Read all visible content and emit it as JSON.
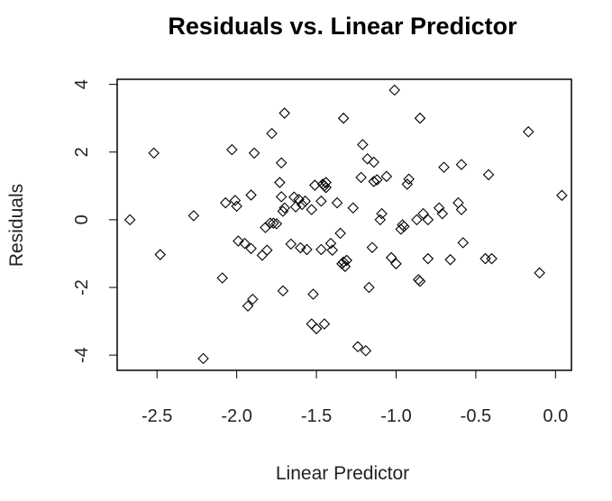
{
  "chart_data": {
    "type": "scatter",
    "title": "Residuals vs. Linear Predictor",
    "xlabel": "Linear Predictor",
    "ylabel": "Residuals",
    "xlim": [
      -2.75,
      0.1
    ],
    "ylim": [
      -4.45,
      4.15
    ],
    "xticks": [
      -2.5,
      -2.0,
      -1.5,
      -1.0,
      -0.5,
      0.0
    ],
    "xtick_labels": [
      "-2.5",
      "-2.0",
      "-1.5",
      "-1.0",
      "-0.5",
      "0.0"
    ],
    "yticks": [
      -4,
      -2,
      0,
      2,
      4
    ],
    "ytick_labels": [
      "-4",
      "-2",
      "0",
      "2",
      "4"
    ],
    "marker": "open-circle",
    "grid": false,
    "points": [
      [
        -2.67,
        0.0
      ],
      [
        -2.52,
        1.97
      ],
      [
        -2.48,
        -1.03
      ],
      [
        -2.27,
        0.12
      ],
      [
        -2.21,
        -4.1
      ],
      [
        -2.09,
        -1.72
      ],
      [
        -2.07,
        0.5
      ],
      [
        -2.03,
        2.07
      ],
      [
        -2.01,
        0.57
      ],
      [
        -2.0,
        0.4
      ],
      [
        -1.99,
        -0.63
      ],
      [
        -1.95,
        -0.7
      ],
      [
        -1.93,
        -2.55
      ],
      [
        -1.91,
        -0.85
      ],
      [
        -1.91,
        0.73
      ],
      [
        -1.9,
        -2.35
      ],
      [
        -1.89,
        1.97
      ],
      [
        -1.84,
        -1.05
      ],
      [
        -1.82,
        -0.23
      ],
      [
        -1.81,
        -0.9
      ],
      [
        -1.79,
        -0.1
      ],
      [
        -1.78,
        2.55
      ],
      [
        -1.77,
        -0.1
      ],
      [
        -1.75,
        -0.12
      ],
      [
        -1.73,
        1.1
      ],
      [
        -1.72,
        1.68
      ],
      [
        -1.72,
        0.68
      ],
      [
        -1.71,
        0.25
      ],
      [
        -1.71,
        -2.1
      ],
      [
        -1.7,
        0.35
      ],
      [
        -1.7,
        3.15
      ],
      [
        -1.66,
        -0.72
      ],
      [
        -1.64,
        0.67
      ],
      [
        -1.63,
        0.38
      ],
      [
        -1.61,
        0.6
      ],
      [
        -1.6,
        -0.83
      ],
      [
        -1.59,
        0.45
      ],
      [
        -1.57,
        0.55
      ],
      [
        -1.56,
        -0.88
      ],
      [
        -1.53,
        0.3
      ],
      [
        -1.53,
        -3.08
      ],
      [
        -1.52,
        -2.2
      ],
      [
        -1.51,
        1.02
      ],
      [
        -1.5,
        -3.22
      ],
      [
        -1.47,
        -0.88
      ],
      [
        -1.47,
        0.55
      ],
      [
        -1.46,
        1.05
      ],
      [
        -1.45,
        1.0
      ],
      [
        -1.45,
        -3.08
      ],
      [
        -1.44,
        1.1
      ],
      [
        -1.44,
        0.95
      ],
      [
        -1.41,
        -0.7
      ],
      [
        -1.4,
        -0.9
      ],
      [
        -1.37,
        0.5
      ],
      [
        -1.35,
        -0.4
      ],
      [
        -1.34,
        -1.3
      ],
      [
        -1.33,
        -1.25
      ],
      [
        -1.33,
        3.0
      ],
      [
        -1.32,
        -1.38
      ],
      [
        -1.31,
        -1.2
      ],
      [
        -1.27,
        0.35
      ],
      [
        -1.24,
        -3.75
      ],
      [
        -1.22,
        1.25
      ],
      [
        -1.21,
        2.22
      ],
      [
        -1.19,
        -3.87
      ],
      [
        -1.18,
        1.8
      ],
      [
        -1.17,
        -2.0
      ],
      [
        -1.15,
        -0.82
      ],
      [
        -1.14,
        1.13
      ],
      [
        -1.14,
        1.7
      ],
      [
        -1.12,
        1.18
      ],
      [
        -1.1,
        0.0
      ],
      [
        -1.09,
        0.18
      ],
      [
        -1.06,
        1.28
      ],
      [
        -1.03,
        -1.12
      ],
      [
        -1.01,
        3.83
      ],
      [
        -1.0,
        -1.3
      ],
      [
        -0.97,
        -0.28
      ],
      [
        -0.96,
        -0.15
      ],
      [
        -0.95,
        -0.2
      ],
      [
        -0.93,
        1.05
      ],
      [
        -0.92,
        1.2
      ],
      [
        -0.87,
        0.0
      ],
      [
        -0.86,
        -1.77
      ],
      [
        -0.85,
        -1.82
      ],
      [
        -0.85,
        3.0
      ],
      [
        -0.83,
        0.18
      ],
      [
        -0.8,
        -1.15
      ],
      [
        -0.8,
        0.0
      ],
      [
        -0.73,
        0.35
      ],
      [
        -0.71,
        0.18
      ],
      [
        -0.7,
        1.55
      ],
      [
        -0.66,
        -1.18
      ],
      [
        -0.61,
        0.5
      ],
      [
        -0.59,
        1.63
      ],
      [
        -0.59,
        0.3
      ],
      [
        -0.58,
        -0.68
      ],
      [
        -0.44,
        -1.15
      ],
      [
        -0.42,
        1.33
      ],
      [
        -0.4,
        -1.15
      ],
      [
        -0.17,
        2.6
      ],
      [
        -0.1,
        -1.57
      ],
      [
        0.04,
        0.72
      ]
    ]
  }
}
